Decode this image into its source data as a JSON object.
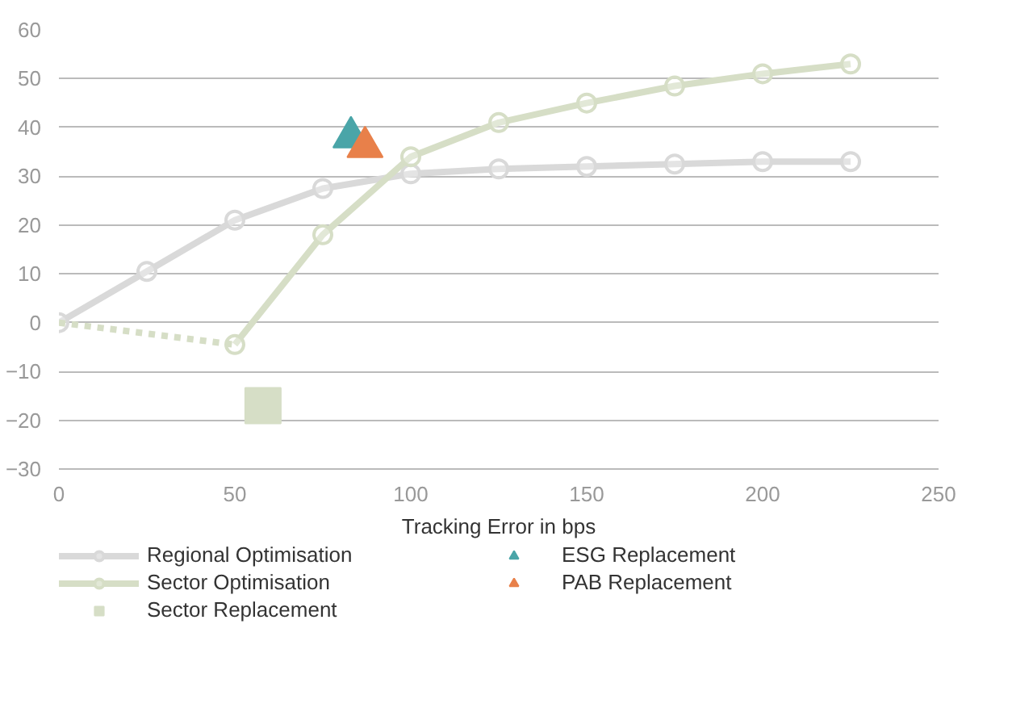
{
  "chart_data": {
    "type": "line",
    "xlabel": "Tracking Error in bps",
    "xlim": [
      0,
      250
    ],
    "xticks": [
      0,
      50,
      100,
      150,
      200,
      250
    ],
    "ylim": [
      -30,
      60
    ],
    "yticks": [
      -30,
      -20,
      -10,
      0,
      10,
      20,
      30,
      40,
      50,
      60
    ],
    "grid": "y",
    "legend": "bottom",
    "series": [
      {
        "name": "Regional Optimisation",
        "color": "#d9d9d9",
        "marker": "circle",
        "line_style": "solid",
        "x": [
          0,
          25,
          50,
          75,
          100,
          125,
          150,
          175,
          200,
          225
        ],
        "values": [
          0,
          10.5,
          21,
          27.5,
          30.5,
          31.5,
          32,
          32.5,
          33,
          33
        ]
      },
      {
        "name": "Sector Optimisation",
        "color": "#d6dec6",
        "marker": "circle",
        "line_style": "solid",
        "x": [
          50,
          75,
          100,
          125,
          150,
          175,
          200,
          225
        ],
        "values": [
          -4.5,
          18,
          34,
          41,
          45,
          48.5,
          51,
          53
        ]
      },
      {
        "color": "#d6dec6",
        "marker": "none",
        "line_style": "dashed",
        "x": [
          0,
          50
        ],
        "values": [
          0,
          -4.5
        ]
      },
      {
        "name": "Sector Replacement",
        "type": "scatter",
        "color": "#d6dec6",
        "marker": "square",
        "x": [
          58
        ],
        "values": [
          -17
        ]
      },
      {
        "name": "ESG Replacement",
        "type": "scatter",
        "color": "#4aa5a8",
        "marker": "triangle",
        "x": [
          83
        ],
        "values": [
          38
        ]
      },
      {
        "name": "PAB Replacement",
        "type": "scatter",
        "color": "#e8804a",
        "marker": "triangle",
        "x": [
          87
        ],
        "values": [
          36
        ]
      }
    ]
  }
}
